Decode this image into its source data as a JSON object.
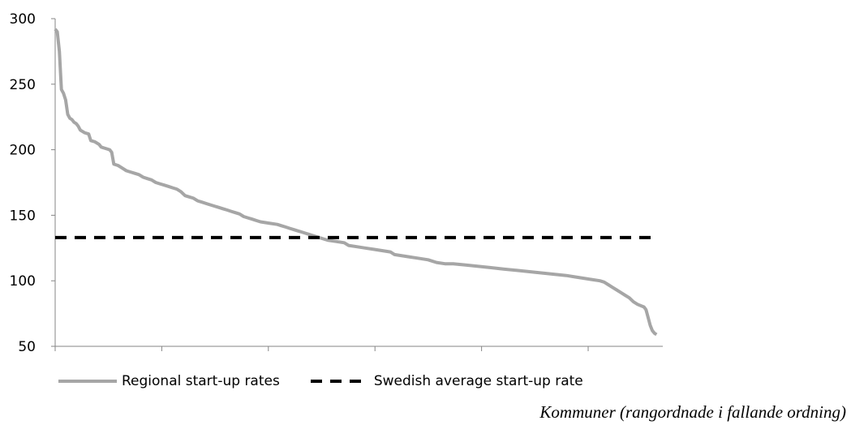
{
  "chart_data": {
    "type": "line",
    "title": "",
    "xlabel": "Kommuner (rangordnade i fallande ordning)",
    "ylabel": "",
    "ylim": [
      50,
      300
    ],
    "yticks": [
      "50",
      "100",
      "150",
      "200",
      "250",
      "300"
    ],
    "x_tick_count": 6,
    "x_range": [
      0,
      290
    ],
    "grid": false,
    "legend_position": "bottom-left",
    "series": [
      {
        "name": "Regional start-up rates",
        "color": "#a6a6a6",
        "style": "solid",
        "points": [
          [
            0,
            292
          ],
          [
            1,
            290
          ],
          [
            2,
            275
          ],
          [
            3,
            246
          ],
          [
            4,
            243
          ],
          [
            5,
            238
          ],
          [
            6,
            227
          ],
          [
            7,
            224
          ],
          [
            8,
            223
          ],
          [
            9,
            221
          ],
          [
            10,
            220
          ],
          [
            11,
            218
          ],
          [
            12,
            215
          ],
          [
            14,
            213
          ],
          [
            16,
            212
          ],
          [
            17,
            207
          ],
          [
            19,
            206
          ],
          [
            21,
            204
          ],
          [
            22,
            202
          ],
          [
            24,
            201
          ],
          [
            26,
            200
          ],
          [
            27,
            198
          ],
          [
            28,
            189
          ],
          [
            30,
            188
          ],
          [
            32,
            186
          ],
          [
            34,
            184
          ],
          [
            36,
            183
          ],
          [
            38,
            182
          ],
          [
            40,
            181
          ],
          [
            42,
            179
          ],
          [
            44,
            178
          ],
          [
            46,
            177
          ],
          [
            48,
            175
          ],
          [
            50,
            174
          ],
          [
            52,
            173
          ],
          [
            54,
            172
          ],
          [
            56,
            171
          ],
          [
            58,
            170
          ],
          [
            60,
            168
          ],
          [
            62,
            165
          ],
          [
            64,
            164
          ],
          [
            66,
            163
          ],
          [
            68,
            161
          ],
          [
            70,
            160
          ],
          [
            72,
            159
          ],
          [
            74,
            158
          ],
          [
            76,
            157
          ],
          [
            78,
            156
          ],
          [
            80,
            155
          ],
          [
            82,
            154
          ],
          [
            84,
            153
          ],
          [
            86,
            152
          ],
          [
            88,
            151
          ],
          [
            90,
            149
          ],
          [
            92,
            148
          ],
          [
            94,
            147
          ],
          [
            96,
            146
          ],
          [
            98,
            145
          ],
          [
            102,
            144
          ],
          [
            106,
            143
          ],
          [
            108,
            142
          ],
          [
            110,
            141
          ],
          [
            112,
            140
          ],
          [
            114,
            139
          ],
          [
            116,
            138
          ],
          [
            118,
            137
          ],
          [
            120,
            136
          ],
          [
            122,
            135
          ],
          [
            124,
            134
          ],
          [
            126,
            133
          ],
          [
            128,
            132
          ],
          [
            130,
            131
          ],
          [
            134,
            130
          ],
          [
            138,
            129
          ],
          [
            140,
            127
          ],
          [
            144,
            126
          ],
          [
            148,
            125
          ],
          [
            152,
            124
          ],
          [
            156,
            123
          ],
          [
            160,
            122
          ],
          [
            162,
            120
          ],
          [
            166,
            119
          ],
          [
            170,
            118
          ],
          [
            174,
            117
          ],
          [
            178,
            116
          ],
          [
            182,
            114
          ],
          [
            186,
            113
          ],
          [
            190,
            113
          ],
          [
            196,
            112
          ],
          [
            202,
            111
          ],
          [
            208,
            110
          ],
          [
            214,
            109
          ],
          [
            220,
            108
          ],
          [
            226,
            107
          ],
          [
            232,
            106
          ],
          [
            238,
            105
          ],
          [
            244,
            104
          ],
          [
            248,
            103
          ],
          [
            252,
            102
          ],
          [
            256,
            101
          ],
          [
            260,
            100
          ],
          [
            262,
            99
          ],
          [
            264,
            97
          ],
          [
            266,
            95
          ],
          [
            268,
            93
          ],
          [
            270,
            91
          ],
          [
            272,
            89
          ],
          [
            274,
            87
          ],
          [
            276,
            84
          ],
          [
            278,
            82
          ],
          [
            281,
            80
          ],
          [
            282,
            78
          ],
          [
            283,
            72
          ],
          [
            284,
            66
          ],
          [
            285,
            62
          ],
          [
            286,
            60
          ],
          [
            287,
            59
          ]
        ]
      },
      {
        "name": "Swedish average start-up rate",
        "color": "#000000",
        "style": "dashed",
        "points": [
          [
            0,
            133
          ],
          [
            287,
            133
          ]
        ]
      }
    ]
  }
}
